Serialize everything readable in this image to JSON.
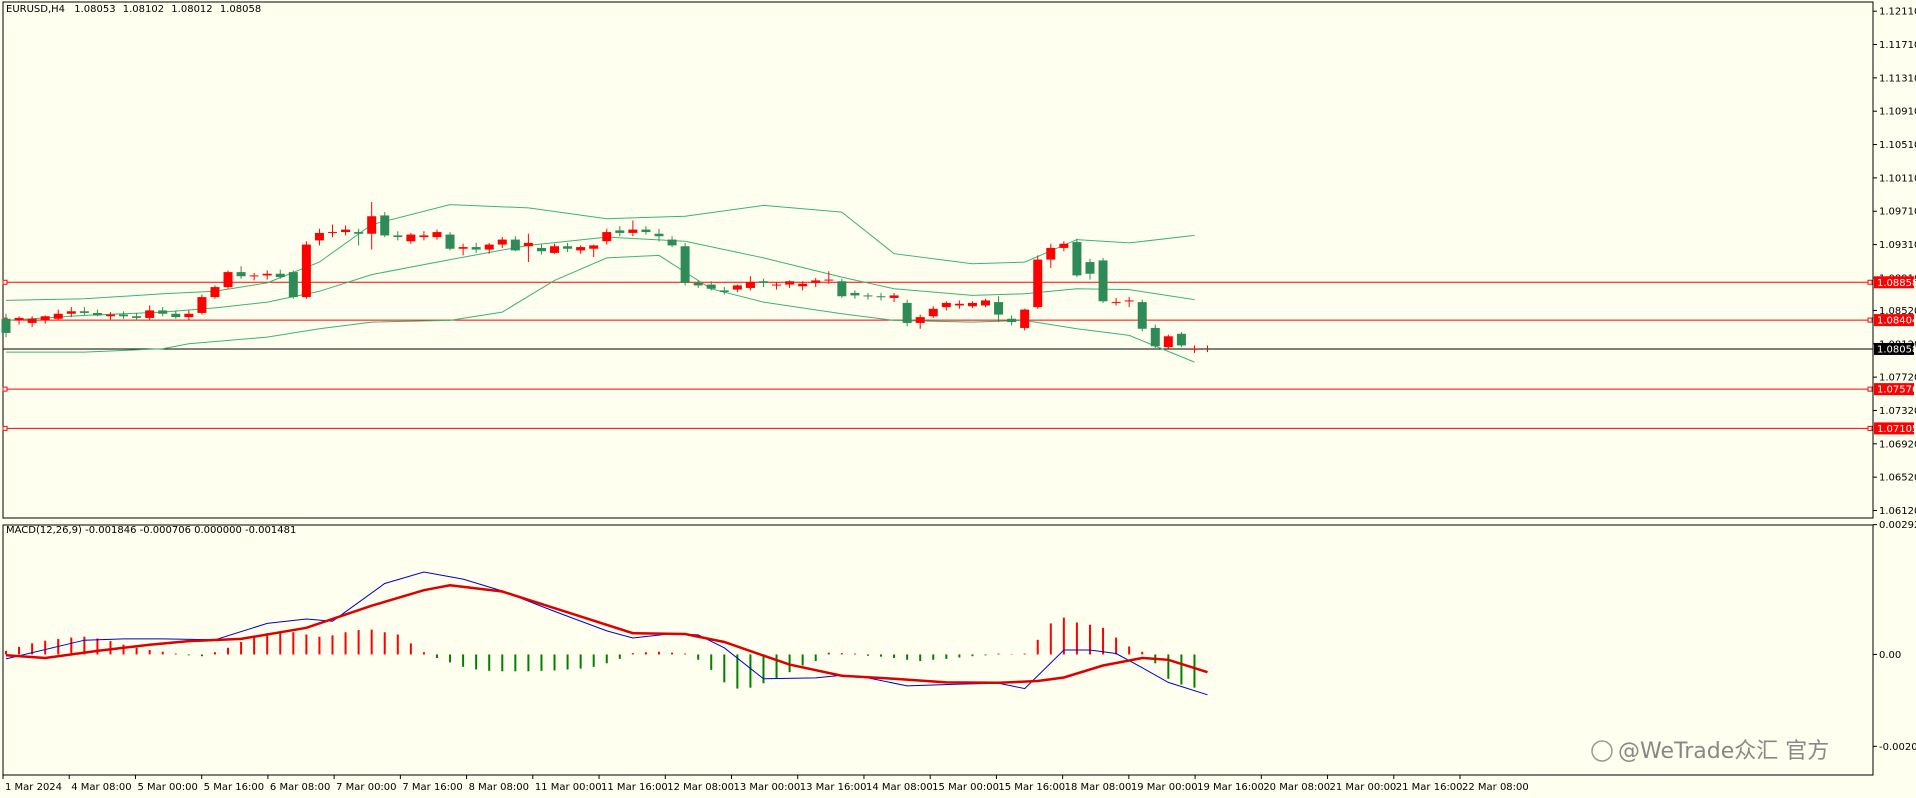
{
  "chart_data": [
    {
      "type": "candlestick",
      "header": {
        "symbol": "EURUSD,H4",
        "open": "1.08053",
        "high": "1.08102",
        "low": "1.08012",
        "close": "1.08058"
      },
      "ylim": [
        1.0603,
        1.1222
      ],
      "y_ticks": [
        "1.12110",
        "1.11710",
        "1.11310",
        "1.10910",
        "1.10510",
        "1.10110",
        "1.09710",
        "1.09310",
        "1.08910",
        "1.08520",
        "1.08120",
        "1.07720",
        "1.07320",
        "1.06920",
        "1.06520",
        "1.06120"
      ],
      "x_ticks": [
        "1 Mar 2024",
        "4 Mar 08:00",
        "5 Mar 00:00",
        "5 Mar 16:00",
        "6 Mar 08:00",
        "7 Mar 00:00",
        "7 Mar 16:00",
        "8 Mar 08:00",
        "11 Mar 00:00",
        "11 Mar 16:00",
        "12 Mar 08:00",
        "13 Mar 00:00",
        "13 Mar 16:00",
        "14 Mar 08:00",
        "15 Mar 00:00",
        "15 Mar 16:00",
        "18 Mar 08:00",
        "19 Mar 00:00",
        "19 Mar 16:00",
        "20 Mar 08:00",
        "21 Mar 00:00",
        "21 Mar 16:00",
        "22 Mar 08:00"
      ],
      "up_color": "#ff0000",
      "down_color": "#2e8b57",
      "line_color": "#3cb371",
      "candles": [
        [
          1.0842,
          1.0848,
          1.082,
          1.0825
        ],
        [
          1.084,
          1.0845,
          1.0835,
          1.0843
        ],
        [
          1.0837,
          1.0845,
          1.0832,
          1.0842
        ],
        [
          1.084,
          1.0846,
          1.0836,
          1.0845
        ],
        [
          1.0842,
          1.0853,
          1.084,
          1.0848
        ],
        [
          1.0848,
          1.0856,
          1.0844,
          1.0851
        ],
        [
          1.0851,
          1.0856,
          1.0846,
          1.0849
        ],
        [
          1.0849,
          1.0853,
          1.0845,
          1.0846
        ],
        [
          1.0845,
          1.085,
          1.0841,
          1.0847
        ],
        [
          1.0847,
          1.0851,
          1.0842,
          1.0845
        ],
        [
          1.0845,
          1.0849,
          1.084,
          1.0843
        ],
        [
          1.0843,
          1.0858,
          1.084,
          1.0852
        ],
        [
          1.0852,
          1.0856,
          1.0845,
          1.0848
        ],
        [
          1.0848,
          1.0852,
          1.0842,
          1.0844
        ],
        [
          1.0844,
          1.0852,
          1.084,
          1.0848
        ],
        [
          1.0849,
          1.0871,
          1.0847,
          1.0868
        ],
        [
          1.0868,
          1.0882,
          1.0866,
          1.088
        ],
        [
          1.088,
          1.09,
          1.0878,
          1.0898
        ],
        [
          1.0898,
          1.0905,
          1.089,
          1.0893
        ],
        [
          1.0893,
          1.0897,
          1.0888,
          1.0894
        ],
        [
          1.0894,
          1.09,
          1.0889,
          1.0896
        ],
        [
          1.0896,
          1.0901,
          1.089,
          1.0892
        ],
        [
          1.0898,
          1.09,
          1.0866,
          1.0868
        ],
        [
          1.0868,
          1.0935,
          1.0866,
          1.0931
        ],
        [
          1.0936,
          1.095,
          1.093,
          1.0945
        ],
        [
          1.0945,
          1.0955,
          1.094,
          1.0946
        ],
        [
          1.0946,
          1.0954,
          1.0942,
          1.0949
        ],
        [
          1.0946,
          1.095,
          1.093,
          1.0944
        ],
        [
          1.0944,
          1.0982,
          1.0925,
          1.0965
        ],
        [
          1.0966,
          1.097,
          1.094,
          1.0942
        ],
        [
          1.0942,
          1.0947,
          1.0936,
          1.094
        ],
        [
          1.0935,
          1.0945,
          1.0932,
          1.0943
        ],
        [
          1.094,
          1.0947,
          1.0936,
          1.0942
        ],
        [
          1.094,
          1.0949,
          1.0937,
          1.0946
        ],
        [
          1.0943,
          1.0946,
          1.0924,
          1.0926
        ],
        [
          1.0926,
          1.0932,
          1.0918,
          1.0928
        ],
        [
          1.0928,
          1.0933,
          1.0921,
          1.0925
        ],
        [
          1.0925,
          1.0933,
          1.092,
          1.0931
        ],
        [
          1.0931,
          1.094,
          1.0927,
          1.0937
        ],
        [
          1.0937,
          1.0941,
          1.0923,
          1.0924
        ],
        [
          1.0929,
          1.0944,
          1.091,
          1.0933
        ],
        [
          1.0927,
          1.0931,
          1.0919,
          1.0923
        ],
        [
          1.0921,
          1.0932,
          1.092,
          1.0929
        ],
        [
          1.0929,
          1.0933,
          1.0922,
          1.0926
        ],
        [
          1.0924,
          1.093,
          1.092,
          1.0928
        ],
        [
          1.0926,
          1.0931,
          1.0916,
          1.093
        ],
        [
          1.0935,
          1.095,
          1.0931,
          1.0946
        ],
        [
          1.0948,
          1.0953,
          1.0941,
          1.0945
        ],
        [
          1.0945,
          1.096,
          1.0941,
          1.0949
        ],
        [
          1.0949,
          1.0953,
          1.0943,
          1.0946
        ],
        [
          1.0944,
          1.095,
          1.0935,
          1.0941
        ],
        [
          1.0937,
          1.0941,
          1.0928,
          1.093
        ],
        [
          1.0929,
          1.0933,
          1.0882,
          1.0885
        ],
        [
          1.0885,
          1.0888,
          1.0879,
          1.0882
        ],
        [
          1.0883,
          1.0887,
          1.0876,
          1.0878
        ],
        [
          1.0876,
          1.088,
          1.0871,
          1.0874
        ],
        [
          1.0877,
          1.0883,
          1.0874,
          1.0882
        ],
        [
          1.0879,
          1.0893,
          1.0876,
          1.0886
        ],
        [
          1.0887,
          1.089,
          1.088,
          1.0885
        ],
        [
          1.0882,
          1.0886,
          1.0877,
          1.0883
        ],
        [
          1.0883,
          1.0888,
          1.0879,
          1.0887
        ],
        [
          1.0881,
          1.0887,
          1.0876,
          1.0884
        ],
        [
          1.0885,
          1.0891,
          1.088,
          1.0888
        ],
        [
          1.0888,
          1.0899,
          1.0884,
          1.0889
        ],
        [
          1.0887,
          1.089,
          1.0867,
          1.0869
        ],
        [
          1.0873,
          1.0876,
          1.0866,
          1.087
        ],
        [
          1.087,
          1.0873,
          1.0865,
          1.0869
        ],
        [
          1.0869,
          1.0873,
          1.0864,
          1.0868
        ],
        [
          1.0867,
          1.0873,
          1.0862,
          1.087
        ],
        [
          1.0861,
          1.0865,
          1.0833,
          1.0837
        ],
        [
          1.0837,
          1.0847,
          1.083,
          1.0844
        ],
        [
          1.0845,
          1.0857,
          1.0843,
          1.0854
        ],
        [
          1.0856,
          1.0863,
          1.0852,
          1.0861
        ],
        [
          1.0858,
          1.0864,
          1.0854,
          1.086
        ],
        [
          1.0857,
          1.0863,
          1.0855,
          1.0861
        ],
        [
          1.0858,
          1.0866,
          1.0856,
          1.0864
        ],
        [
          1.0862,
          1.0869,
          1.0838,
          1.0847
        ],
        [
          1.0842,
          1.0846,
          1.0834,
          1.0838
        ],
        [
          1.0831,
          1.0854,
          1.0828,
          1.0853
        ],
        [
          1.0856,
          1.0918,
          1.0854,
          1.0913
        ],
        [
          1.0913,
          1.0932,
          1.0903,
          1.0927
        ],
        [
          1.0927,
          1.0935,
          1.0923,
          1.0932
        ],
        [
          1.0934,
          1.0938,
          1.0892,
          1.0894
        ],
        [
          1.091,
          1.0914,
          1.0889,
          1.0896
        ],
        [
          1.0912,
          1.0915,
          1.0861,
          1.0863
        ],
        [
          1.0862,
          1.0867,
          1.0858,
          1.0862
        ],
        [
          1.0863,
          1.0868,
          1.0856,
          1.0864
        ],
        [
          1.0862,
          1.0865,
          1.0827,
          1.083
        ],
        [
          1.0831,
          1.0835,
          1.0807,
          1.0809
        ],
        [
          1.0808,
          1.0823,
          1.0806,
          1.0821
        ],
        [
          1.0824,
          1.0826,
          1.0808,
          1.081
        ],
        [
          1.0805,
          1.081,
          1.0801,
          1.0806
        ]
      ],
      "bollinger": {
        "upper": [
          [
            0,
            1.0864
          ],
          [
            6,
            1.0866
          ],
          [
            12,
            1.0872
          ],
          [
            16,
            1.0875
          ],
          [
            20,
            1.0885
          ],
          [
            24,
            1.091
          ],
          [
            28,
            1.0955
          ],
          [
            34,
            1.0979
          ],
          [
            40,
            1.0975
          ],
          [
            46,
            1.0962
          ],
          [
            52,
            1.0965
          ],
          [
            58,
            1.0978
          ],
          [
            64,
            1.097
          ],
          [
            68,
            1.092
          ],
          [
            74,
            1.0908
          ],
          [
            78,
            1.091
          ],
          [
            82,
            1.0937
          ],
          [
            86,
            1.0933
          ],
          [
            91,
            1.0942
          ]
        ],
        "middle": [
          [
            0,
            1.084
          ],
          [
            6,
            1.0846
          ],
          [
            12,
            1.085
          ],
          [
            16,
            1.0855
          ],
          [
            20,
            1.0862
          ],
          [
            24,
            1.0875
          ],
          [
            28,
            1.0895
          ],
          [
            34,
            1.0913
          ],
          [
            40,
            1.093
          ],
          [
            46,
            1.094
          ],
          [
            52,
            1.0935
          ],
          [
            58,
            1.0915
          ],
          [
            64,
            1.0892
          ],
          [
            68,
            1.0878
          ],
          [
            74,
            1.087
          ],
          [
            78,
            1.0872
          ],
          [
            82,
            1.0878
          ],
          [
            86,
            1.0877
          ],
          [
            91,
            1.0865
          ]
        ],
        "lower": [
          [
            0,
            1.0802
          ],
          [
            6,
            1.0802
          ],
          [
            12,
            1.0806
          ],
          [
            14,
            1.0812
          ],
          [
            20,
            1.082
          ],
          [
            24,
            1.083
          ],
          [
            28,
            1.0838
          ],
          [
            34,
            1.084
          ],
          [
            38,
            1.085
          ],
          [
            42,
            1.0888
          ],
          [
            46,
            1.0915
          ],
          [
            50,
            1.0918
          ],
          [
            54,
            1.0878
          ],
          [
            58,
            1.0862
          ],
          [
            64,
            1.0848
          ],
          [
            68,
            1.084
          ],
          [
            74,
            1.0838
          ],
          [
            78,
            1.084
          ],
          [
            82,
            1.083
          ],
          [
            86,
            1.0822
          ],
          [
            91,
            1.079
          ]
        ]
      },
      "h_lines": [
        {
          "value": 1.08858,
          "label": "1.08858",
          "kind": "level"
        },
        {
          "value": 1.08404,
          "label": "1.08404",
          "kind": "level"
        },
        {
          "value": 1.08058,
          "label": "1.08058",
          "kind": "current"
        },
        {
          "value": 1.07576,
          "label": "1.07576",
          "kind": "level"
        },
        {
          "value": 1.07105,
          "label": "1.07105",
          "kind": "level"
        }
      ]
    },
    {
      "type": "macd",
      "header": "MACD(12,26,9) -0.001846 -0.000706 0.000000 -0.001481",
      "ylim": [
        -0.00272,
        0.00292
      ],
      "y_ticks": [
        {
          "value": 0.002929,
          "label": "0.002929"
        },
        {
          "value": 0,
          "label": "0.00"
        },
        {
          "value": -0.002073,
          "label": "-0.002073"
        }
      ],
      "histogram": [
        8e-05,
        0.00017,
        0.00025,
        0.00031,
        0.00035,
        0.00038,
        0.0004,
        0.00036,
        0.0003,
        0.00022,
        0.00015,
        0.0001,
        6e-05,
        2e-05,
        -2e-05,
        -4e-05,
        5e-05,
        0.00015,
        0.00028,
        0.0004,
        0.00048,
        0.00052,
        0.0005,
        0.00045,
        0.0004,
        0.00043,
        0.0005,
        0.00055,
        0.00056,
        0.0005,
        0.00045,
        0.00025,
        5e-05,
        -8e-05,
        -0.00018,
        -0.00028,
        -0.00034,
        -0.00037,
        -0.00038,
        -0.00038,
        -0.00038,
        -0.00037,
        -0.00036,
        -0.00034,
        -0.00032,
        -0.00028,
        -0.0002,
        -0.0001,
        3e-05,
        5e-05,
        6e-05,
        4e-05,
        2e-05,
        -0.00012,
        -0.00035,
        -0.00063,
        -0.00077,
        -0.00075,
        -0.00065,
        -0.00053,
        -0.0004,
        -0.00025,
        -0.00015,
        4e-05,
        3e-05,
        2e-05,
        -3e-05,
        -5e-05,
        -8e-05,
        -0.00012,
        -0.00015,
        -0.00012,
        -0.0001,
        -7e-05,
        -4e-05,
        -2e-05,
        2e-05,
        1e-05,
        2e-05,
        0.00033,
        0.0007,
        0.00083,
        0.00072,
        0.00067,
        0.0006,
        0.00038,
        0.00018,
        6e-05,
        -0.0002,
        -0.00055,
        -0.00068,
        -0.00075
      ],
      "main": [
        [
          0,
          -0.0001
        ],
        [
          6,
          0.00032
        ],
        [
          9,
          0.00035
        ],
        [
          12,
          0.00035
        ],
        [
          16,
          0.00033
        ],
        [
          20,
          0.0007
        ],
        [
          23,
          0.0008
        ],
        [
          25,
          0.00075
        ],
        [
          29,
          0.0016
        ],
        [
          32,
          0.00186
        ],
        [
          35,
          0.0017
        ],
        [
          38,
          0.00143
        ],
        [
          42,
          0.00097
        ],
        [
          46,
          0.00053
        ],
        [
          48,
          0.00037
        ],
        [
          51,
          0.00047
        ],
        [
          53,
          0.00044
        ],
        [
          55,
          0.00015
        ],
        [
          58,
          -0.00055
        ],
        [
          62,
          -0.00053
        ],
        [
          64,
          -0.00047
        ],
        [
          66,
          -0.00053
        ],
        [
          69,
          -0.00071
        ],
        [
          73,
          -0.00067
        ],
        [
          76,
          -0.00065
        ],
        [
          78,
          -0.00077
        ],
        [
          81,
          0.0001
        ],
        [
          83,
          0.0001
        ],
        [
          85,
          2e-05
        ],
        [
          87,
          -0.0003
        ],
        [
          89,
          -0.00063
        ],
        [
          92,
          -0.00091
        ]
      ],
      "signal": [
        [
          0,
          -2e-05
        ],
        [
          3,
          -8e-05
        ],
        [
          7,
          8e-05
        ],
        [
          11,
          0.00022
        ],
        [
          14,
          0.0003
        ],
        [
          18,
          0.00035
        ],
        [
          23,
          0.0006
        ],
        [
          28,
          0.0011
        ],
        [
          32,
          0.00145
        ],
        [
          34,
          0.00156
        ],
        [
          38,
          0.00142
        ],
        [
          43,
          0.00095
        ],
        [
          48,
          0.00048
        ],
        [
          52,
          0.00046
        ],
        [
          55,
          0.00028
        ],
        [
          60,
          -0.00023
        ],
        [
          64,
          -0.00048
        ],
        [
          68,
          -0.00055
        ],
        [
          72,
          -0.00063
        ],
        [
          76,
          -0.00064
        ],
        [
          79,
          -0.0006
        ],
        [
          81,
          -0.00052
        ],
        [
          84,
          -0.00025
        ],
        [
          87,
          -8e-05
        ],
        [
          89,
          -0.00012
        ],
        [
          92,
          -0.0004
        ]
      ],
      "main_color": "#0000cd",
      "signal_color": "#dd0000",
      "hist_up_color": "#ff0000",
      "hist_down_color": "#008000"
    }
  ],
  "watermark": "@WeTrade众汇 官方"
}
